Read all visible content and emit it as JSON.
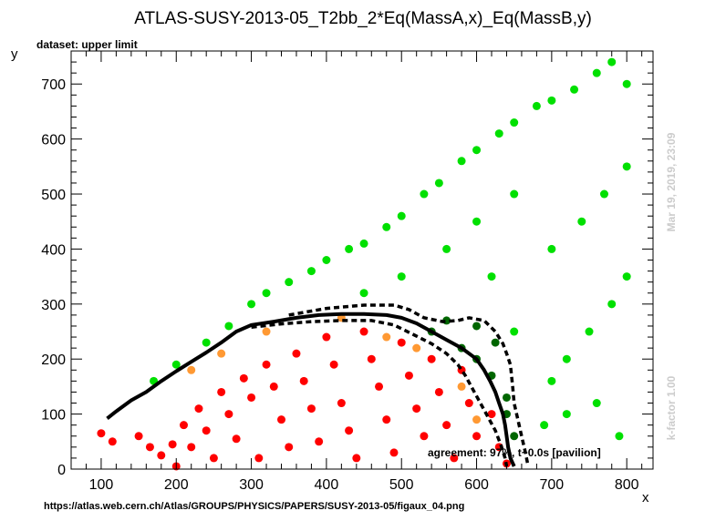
{
  "chart_data": {
    "type": "scatter",
    "title": "ATLAS-SUSY-2013-05_T2bb_2*Eq(MassA,x)_Eq(MassB,y)",
    "subtitle": "dataset: upper limit",
    "xlabel": "x",
    "ylabel": "y",
    "xlim": [
      60,
      835
    ],
    "ylim": [
      0,
      760
    ],
    "x_ticks": [
      100,
      200,
      300,
      400,
      500,
      600,
      700,
      800
    ],
    "y_ticks": [
      0,
      100,
      200,
      300,
      400,
      500,
      600,
      700
    ],
    "grid": false,
    "legend": "none",
    "series_colors": {
      "excluded": "#ff0000",
      "allowed": "#00e000",
      "excluded_near_boundary": "#ff9933",
      "allowed_near_boundary": "#006600",
      "contour": "#000000"
    },
    "excluded_points": [
      [
        100,
        65
      ],
      [
        115,
        50
      ],
      [
        150,
        60
      ],
      [
        165,
        40
      ],
      [
        180,
        25
      ],
      [
        200,
        5
      ],
      [
        195,
        45
      ],
      [
        210,
        80
      ],
      [
        220,
        40
      ],
      [
        230,
        110
      ],
      [
        240,
        70
      ],
      [
        250,
        20
      ],
      [
        260,
        140
      ],
      [
        270,
        100
      ],
      [
        280,
        55
      ],
      [
        290,
        165
      ],
      [
        300,
        130
      ],
      [
        310,
        20
      ],
      [
        320,
        190
      ],
      [
        330,
        150
      ],
      [
        340,
        90
      ],
      [
        350,
        40
      ],
      [
        360,
        210
      ],
      [
        370,
        160
      ],
      [
        380,
        110
      ],
      [
        390,
        50
      ],
      [
        400,
        240
      ],
      [
        410,
        190
      ],
      [
        420,
        120
      ],
      [
        430,
        70
      ],
      [
        440,
        20
      ],
      [
        450,
        250
      ],
      [
        460,
        200
      ],
      [
        470,
        150
      ],
      [
        480,
        90
      ],
      [
        490,
        30
      ],
      [
        500,
        230
      ],
      [
        510,
        170
      ],
      [
        520,
        110
      ],
      [
        530,
        60
      ],
      [
        540,
        200
      ],
      [
        550,
        140
      ],
      [
        560,
        80
      ],
      [
        570,
        20
      ],
      [
        580,
        180
      ],
      [
        590,
        120
      ],
      [
        600,
        60
      ],
      [
        620,
        100
      ],
      [
        630,
        40
      ],
      [
        640,
        10
      ]
    ],
    "allowed_points": [
      [
        170,
        160
      ],
      [
        200,
        190
      ],
      [
        240,
        230
      ],
      [
        270,
        260
      ],
      [
        300,
        300
      ],
      [
        320,
        320
      ],
      [
        350,
        340
      ],
      [
        380,
        360
      ],
      [
        400,
        380
      ],
      [
        430,
        400
      ],
      [
        450,
        410
      ],
      [
        480,
        440
      ],
      [
        500,
        460
      ],
      [
        530,
        500
      ],
      [
        550,
        520
      ],
      [
        580,
        560
      ],
      [
        600,
        580
      ],
      [
        630,
        610
      ],
      [
        650,
        630
      ],
      [
        680,
        660
      ],
      [
        700,
        670
      ],
      [
        730,
        690
      ],
      [
        760,
        720
      ],
      [
        780,
        740
      ],
      [
        800,
        700
      ],
      [
        700,
        160
      ],
      [
        720,
        200
      ],
      [
        750,
        250
      ],
      [
        780,
        300
      ],
      [
        800,
        350
      ],
      [
        700,
        400
      ],
      [
        740,
        450
      ],
      [
        770,
        500
      ],
      [
        800,
        550
      ],
      [
        690,
        80
      ],
      [
        720,
        100
      ],
      [
        760,
        120
      ],
      [
        790,
        60
      ],
      [
        650,
        250
      ],
      [
        620,
        350
      ],
      [
        560,
        400
      ],
      [
        600,
        450
      ],
      [
        650,
        500
      ],
      [
        500,
        350
      ],
      [
        450,
        320
      ]
    ],
    "near_boundary_excluded_points": [
      [
        220,
        180
      ],
      [
        260,
        210
      ],
      [
        320,
        250
      ],
      [
        420,
        275
      ],
      [
        480,
        240
      ],
      [
        520,
        220
      ],
      [
        580,
        150
      ],
      [
        600,
        90
      ]
    ],
    "near_boundary_allowed_points": [
      [
        540,
        250
      ],
      [
        580,
        220
      ],
      [
        600,
        200
      ],
      [
        620,
        170
      ],
      [
        640,
        130
      ],
      [
        650,
        60
      ],
      [
        560,
        270
      ],
      [
        600,
        260
      ],
      [
        625,
        230
      ],
      [
        640,
        100
      ]
    ],
    "contour_solid": [
      [
        108,
        92
      ],
      [
        120,
        105
      ],
      [
        140,
        125
      ],
      [
        160,
        140
      ],
      [
        180,
        160
      ],
      [
        200,
        178
      ],
      [
        220,
        195
      ],
      [
        240,
        212
      ],
      [
        260,
        230
      ],
      [
        280,
        250
      ],
      [
        300,
        262
      ],
      [
        330,
        268
      ],
      [
        360,
        275
      ],
      [
        390,
        280
      ],
      [
        420,
        282
      ],
      [
        450,
        282
      ],
      [
        480,
        280
      ],
      [
        500,
        275
      ],
      [
        520,
        265
      ],
      [
        540,
        250
      ],
      [
        560,
        235
      ],
      [
        580,
        220
      ],
      [
        600,
        200
      ],
      [
        610,
        180
      ],
      [
        618,
        160
      ],
      [
        625,
        140
      ],
      [
        630,
        120
      ],
      [
        635,
        100
      ],
      [
        638,
        80
      ],
      [
        640,
        60
      ],
      [
        642,
        40
      ],
      [
        645,
        20
      ],
      [
        650,
        5
      ]
    ],
    "contour_dashed": [
      [
        350,
        280
      ],
      [
        400,
        292
      ],
      [
        450,
        298
      ],
      [
        490,
        298
      ],
      [
        510,
        290
      ],
      [
        530,
        275
      ],
      [
        555,
        268
      ],
      [
        575,
        270
      ],
      [
        590,
        275
      ],
      [
        610,
        270
      ],
      [
        625,
        250
      ],
      [
        635,
        228
      ],
      [
        640,
        210
      ],
      [
        645,
        190
      ],
      [
        648,
        150
      ],
      [
        650,
        120
      ],
      [
        655,
        90
      ],
      [
        660,
        60
      ],
      [
        665,
        30
      ],
      [
        668,
        10
      ]
    ],
    "contour_dashed_inner": [
      [
        300,
        258
      ],
      [
        340,
        264
      ],
      [
        380,
        268
      ],
      [
        420,
        270
      ],
      [
        460,
        270
      ],
      [
        490,
        262
      ],
      [
        515,
        245
      ],
      [
        540,
        228
      ],
      [
        560,
        210
      ],
      [
        575,
        190
      ],
      [
        585,
        170
      ],
      [
        595,
        145
      ],
      [
        605,
        120
      ],
      [
        615,
        95
      ],
      [
        625,
        70
      ],
      [
        632,
        45
      ],
      [
        638,
        20
      ],
      [
        640,
        5
      ]
    ]
  },
  "annotations": {
    "agreement": "agreement: 97%, t~0.0s [pavilion]",
    "timestamp": "Mar 19, 2019, 23:09",
    "kfactor": "k-factor 1.00",
    "source_url": "https://atlas.web.cern.ch/Atlas/GROUPS/PHYSICS/PAPERS/SUSY-2013-05/figaux_04.png"
  }
}
